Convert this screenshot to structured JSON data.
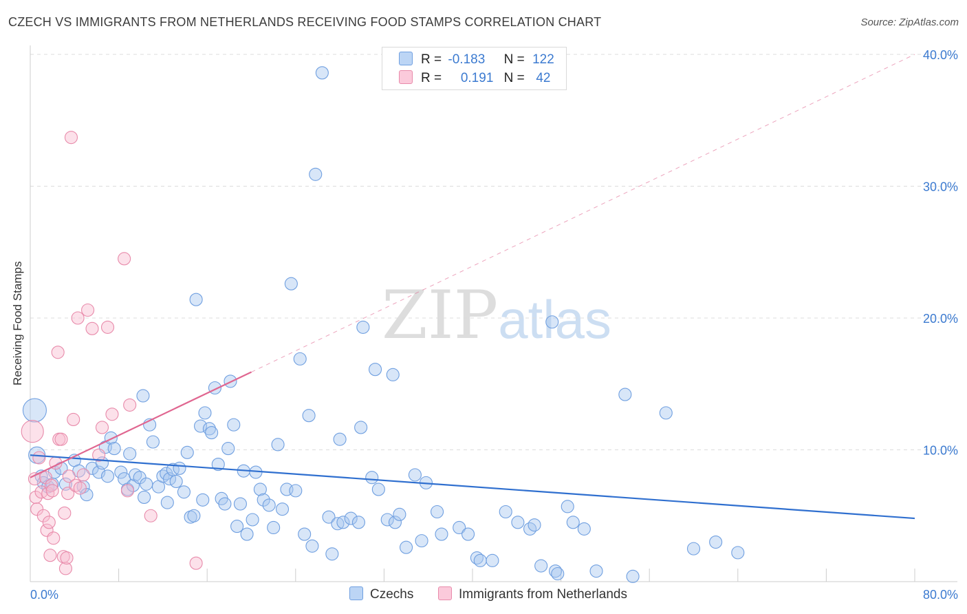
{
  "chart_data": {
    "type": "scatter",
    "title": "CZECH VS IMMIGRANTS FROM NETHERLANDS RECEIVING FOOD STAMPS CORRELATION CHART",
    "source": "Source: ZipAtlas.com",
    "ylabel": "Receiving Food Stamps",
    "xlim": [
      0,
      80
    ],
    "ylim": [
      0,
      40
    ],
    "x_tick_labels": [
      "0.0%",
      "80.0%"
    ],
    "y_tick_labels": [
      "10.0%",
      "20.0%",
      "30.0%",
      "40.0%"
    ],
    "y_ticks": [
      10,
      20,
      30,
      40
    ],
    "watermark": {
      "zip": "ZIP",
      "atlas": "atlas"
    },
    "legend": [
      {
        "r_label": "R =",
        "r_value": "-0.183",
        "n_label": "N =",
        "n_value": "122"
      },
      {
        "r_label": "R =",
        "r_value": " 0.191",
        "n_label": "N =",
        "n_value": " 42"
      }
    ],
    "series": [
      {
        "name": "Czechs",
        "color": "#a9c8f0",
        "edge": "#6f9fe0",
        "trend_color": "#2f6fcf",
        "trend": {
          "x0": 0,
          "y0": 9.6,
          "x1": 80,
          "y1": 4.8
        },
        "points": [
          [
            0.4,
            13.0
          ],
          [
            0.6,
            9.6
          ],
          [
            1.0,
            8.0
          ],
          [
            1.2,
            7.5
          ],
          [
            1.6,
            7.2
          ],
          [
            2.0,
            7.4
          ],
          [
            2.2,
            8.3
          ],
          [
            2.8,
            8.6
          ],
          [
            3.2,
            7.4
          ],
          [
            4.0,
            9.2
          ],
          [
            4.4,
            8.4
          ],
          [
            4.8,
            7.2
          ],
          [
            5.1,
            6.6
          ],
          [
            5.6,
            8.6
          ],
          [
            6.2,
            8.3
          ],
          [
            6.5,
            9.0
          ],
          [
            6.8,
            10.2
          ],
          [
            7.0,
            8.0
          ],
          [
            7.3,
            10.9
          ],
          [
            7.6,
            10.1
          ],
          [
            8.2,
            8.3
          ],
          [
            8.5,
            7.8
          ],
          [
            8.8,
            7.0
          ],
          [
            9.0,
            9.7
          ],
          [
            9.3,
            7.3
          ],
          [
            9.5,
            8.1
          ],
          [
            9.9,
            7.9
          ],
          [
            10.3,
            6.4
          ],
          [
            10.5,
            7.4
          ],
          [
            10.2,
            14.1
          ],
          [
            10.8,
            11.9
          ],
          [
            11.1,
            10.6
          ],
          [
            11.6,
            7.2
          ],
          [
            12.0,
            8.0
          ],
          [
            12.3,
            8.2
          ],
          [
            12.6,
            7.8
          ],
          [
            12.4,
            6.0
          ],
          [
            12.9,
            8.5
          ],
          [
            13.2,
            7.6
          ],
          [
            13.5,
            8.6
          ],
          [
            13.9,
            6.8
          ],
          [
            14.2,
            9.8
          ],
          [
            14.5,
            4.9
          ],
          [
            14.8,
            5.0
          ],
          [
            15.0,
            21.4
          ],
          [
            15.4,
            11.8
          ],
          [
            15.6,
            6.2
          ],
          [
            15.8,
            12.8
          ],
          [
            16.2,
            11.6
          ],
          [
            16.4,
            11.3
          ],
          [
            16.7,
            14.7
          ],
          [
            17.0,
            8.9
          ],
          [
            17.3,
            6.3
          ],
          [
            17.6,
            5.9
          ],
          [
            17.9,
            10.1
          ],
          [
            18.1,
            15.2
          ],
          [
            18.4,
            11.9
          ],
          [
            18.7,
            4.2
          ],
          [
            19.0,
            5.9
          ],
          [
            19.3,
            8.4
          ],
          [
            19.6,
            3.6
          ],
          [
            20.1,
            4.7
          ],
          [
            20.4,
            8.3
          ],
          [
            20.8,
            7.0
          ],
          [
            21.1,
            6.2
          ],
          [
            21.6,
            5.8
          ],
          [
            22.0,
            4.1
          ],
          [
            22.4,
            10.4
          ],
          [
            22.8,
            5.5
          ],
          [
            23.2,
            7.0
          ],
          [
            23.6,
            22.6
          ],
          [
            24.0,
            6.9
          ],
          [
            24.4,
            16.9
          ],
          [
            24.8,
            3.6
          ],
          [
            25.2,
            12.6
          ],
          [
            25.5,
            2.7
          ],
          [
            25.8,
            30.9
          ],
          [
            26.4,
            38.6
          ],
          [
            27.0,
            4.9
          ],
          [
            27.3,
            2.1
          ],
          [
            27.8,
            4.4
          ],
          [
            28.0,
            10.8
          ],
          [
            28.3,
            4.5
          ],
          [
            29.0,
            4.8
          ],
          [
            29.7,
            4.5
          ],
          [
            29.9,
            11.7
          ],
          [
            30.1,
            19.3
          ],
          [
            30.9,
            7.9
          ],
          [
            31.2,
            16.1
          ],
          [
            31.5,
            7.0
          ],
          [
            32.3,
            4.7
          ],
          [
            32.8,
            15.7
          ],
          [
            33.0,
            4.5
          ],
          [
            33.4,
            5.1
          ],
          [
            34.0,
            2.6
          ],
          [
            34.8,
            8.1
          ],
          [
            35.4,
            3.1
          ],
          [
            35.8,
            7.5
          ],
          [
            36.8,
            5.3
          ],
          [
            37.2,
            3.6
          ],
          [
            38.8,
            4.1
          ],
          [
            39.6,
            3.6
          ],
          [
            40.4,
            1.8
          ],
          [
            40.7,
            1.6
          ],
          [
            41.8,
            1.6
          ],
          [
            43.0,
            5.3
          ],
          [
            44.1,
            4.5
          ],
          [
            45.2,
            4.0
          ],
          [
            45.6,
            4.3
          ],
          [
            46.2,
            1.2
          ],
          [
            47.2,
            19.7
          ],
          [
            47.5,
            0.8
          ],
          [
            47.7,
            0.6
          ],
          [
            48.6,
            5.7
          ],
          [
            49.1,
            4.5
          ],
          [
            50.1,
            4.0
          ],
          [
            51.2,
            0.8
          ],
          [
            53.8,
            14.2
          ],
          [
            54.5,
            0.4
          ],
          [
            57.5,
            12.8
          ],
          [
            60.0,
            2.5
          ],
          [
            62.0,
            3.0
          ],
          [
            64.0,
            2.2
          ]
        ]
      },
      {
        "name": "Immigrants from Netherlands",
        "color": "#f8bcd0",
        "edge": "#e88aaa",
        "trend_color": "#e06690",
        "trend": {
          "x0": 0,
          "y0": 7.9,
          "x1": 20,
          "y1": 15.9
        },
        "trend_ext": {
          "x0": 20,
          "y0": 15.9,
          "x1": 80,
          "y1": 40.0
        },
        "points": [
          [
            0.2,
            11.4
          ],
          [
            0.4,
            7.8
          ],
          [
            0.5,
            6.4
          ],
          [
            0.6,
            5.5
          ],
          [
            0.8,
            9.4
          ],
          [
            1.0,
            6.8
          ],
          [
            1.2,
            5.0
          ],
          [
            1.4,
            7.9
          ],
          [
            1.5,
            3.9
          ],
          [
            1.6,
            6.7
          ],
          [
            1.7,
            4.5
          ],
          [
            1.8,
            2.0
          ],
          [
            1.9,
            7.3
          ],
          [
            2.0,
            6.9
          ],
          [
            2.1,
            3.3
          ],
          [
            2.3,
            9.0
          ],
          [
            2.5,
            17.4
          ],
          [
            2.6,
            10.8
          ],
          [
            2.8,
            10.8
          ],
          [
            3.0,
            1.9
          ],
          [
            3.1,
            5.2
          ],
          [
            3.2,
            1.0
          ],
          [
            3.3,
            1.8
          ],
          [
            3.4,
            6.7
          ],
          [
            3.5,
            8.0
          ],
          [
            3.7,
            33.7
          ],
          [
            3.9,
            12.3
          ],
          [
            4.1,
            7.3
          ],
          [
            4.3,
            20.0
          ],
          [
            4.5,
            7.1
          ],
          [
            4.8,
            8.1
          ],
          [
            5.2,
            20.6
          ],
          [
            5.6,
            19.2
          ],
          [
            6.2,
            9.6
          ],
          [
            6.5,
            11.7
          ],
          [
            7.0,
            19.3
          ],
          [
            7.4,
            12.7
          ],
          [
            8.5,
            24.5
          ],
          [
            8.8,
            6.9
          ],
          [
            9.0,
            13.4
          ],
          [
            10.9,
            5.0
          ],
          [
            15.0,
            1.4
          ]
        ]
      }
    ]
  }
}
